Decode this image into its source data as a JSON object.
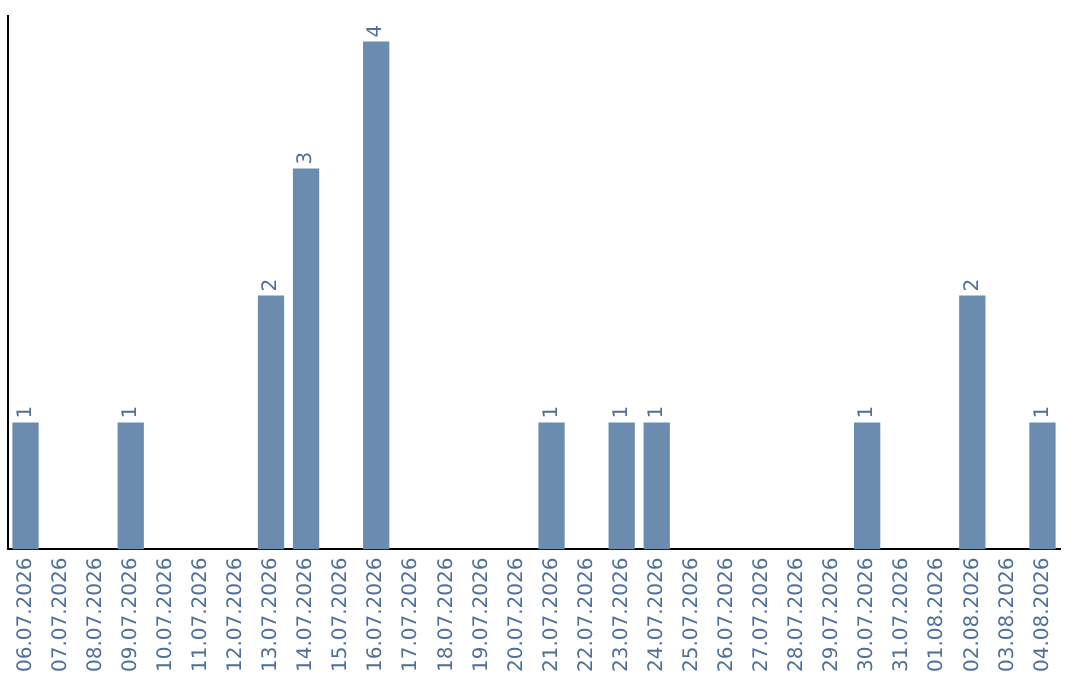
{
  "chart_data": {
    "type": "bar",
    "categories": [
      "06.07.2026",
      "07.07.2026",
      "08.07.2026",
      "09.07.2026",
      "10.07.2026",
      "11.07.2026",
      "12.07.2026",
      "13.07.2026",
      "14.07.2026",
      "15.07.2026",
      "16.07.2026",
      "17.07.2026",
      "18.07.2026",
      "19.07.2026",
      "20.07.2026",
      "21.07.2026",
      "22.07.2026",
      "23.07.2026",
      "24.07.2026",
      "25.07.2026",
      "26.07.2026",
      "27.07.2026",
      "28.07.2026",
      "29.07.2026",
      "30.07.2026",
      "31.07.2026",
      "01.08.2026",
      "02.08.2026",
      "03.08.2026",
      "04.08.2026"
    ],
    "values": [
      1,
      0,
      0,
      1,
      0,
      0,
      0,
      2,
      3,
      0,
      4,
      0,
      0,
      0,
      0,
      1,
      0,
      1,
      1,
      0,
      0,
      0,
      0,
      0,
      1,
      0,
      0,
      2,
      0,
      1
    ],
    "value_labels": [
      "1",
      null,
      null,
      "1",
      null,
      null,
      null,
      "2",
      "3",
      null,
      "4",
      null,
      null,
      null,
      null,
      "1",
      null,
      "1",
      "1",
      null,
      null,
      null,
      null,
      null,
      "1",
      null,
      null,
      "2",
      null,
      "1"
    ],
    "color": "#6b8cae",
    "ylim": [
      0,
      4.2
    ],
    "tick_labels": "x",
    "grid": false,
    "legend": false
  }
}
